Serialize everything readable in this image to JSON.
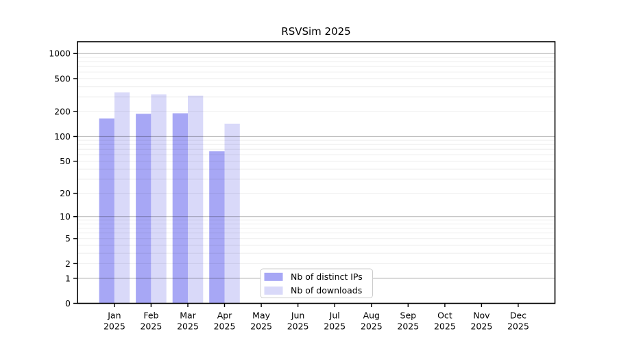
{
  "chart_data": {
    "type": "bar",
    "title": "RSVSim 2025",
    "categories": [
      "Jan",
      "Feb",
      "Mar",
      "Apr",
      "May",
      "Jun",
      "Jul",
      "Aug",
      "Sep",
      "Oct",
      "Nov",
      "Dec"
    ],
    "year_label": "2025",
    "series": [
      {
        "name": "Nb of distinct IPs",
        "color": "#a7a7f5",
        "values": [
          165,
          188,
          191,
          66,
          null,
          null,
          null,
          null,
          null,
          null,
          null,
          null
        ]
      },
      {
        "name": "Nb of downloads",
        "color": "#d9d9f9",
        "values": [
          340,
          322,
          312,
          143,
          null,
          null,
          null,
          null,
          null,
          null,
          null,
          null
        ]
      }
    ],
    "y_ticks": [
      0,
      1,
      2,
      5,
      10,
      20,
      50,
      100,
      200,
      500,
      1000
    ],
    "yscale": "log1p",
    "ylim": [
      0,
      1390
    ],
    "xlabel": "",
    "ylabel": "",
    "grid": true,
    "legend_position": "lower center"
  }
}
